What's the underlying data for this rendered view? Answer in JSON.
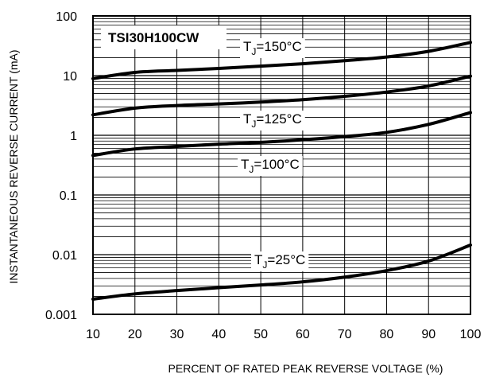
{
  "chart_data": {
    "type": "line",
    "title": "",
    "xlabel": "PERCENT OF RATED PEAK REVERSE VOLTAGE (%)",
    "ylabel": "INSTANTANEOUS REVERSE CURRENT (mA)",
    "xlim": [
      10,
      100
    ],
    "ylim": [
      0.001,
      100
    ],
    "yscale": "log",
    "grid": true,
    "x_ticks": [
      "10",
      "20",
      "30",
      "40",
      "50",
      "60",
      "70",
      "80",
      "90",
      "100"
    ],
    "y_ticks": [
      "0.001",
      "0.01",
      "0.1",
      "1",
      "10",
      "100"
    ],
    "x": [
      10,
      20,
      30,
      40,
      50,
      60,
      70,
      80,
      90,
      100
    ],
    "part_label": "TSI30H100CW",
    "series": [
      {
        "name_main": "T",
        "name_sub": "J",
        "name_rest": "=150°C",
        "values": [
          8.9,
          11.3,
          12.2,
          13.2,
          14.4,
          15.8,
          17.8,
          20.5,
          25.5,
          36.0
        ]
      },
      {
        "name_main": "T",
        "name_sub": "J",
        "name_rest": "=125°C",
        "values": [
          2.2,
          2.85,
          3.15,
          3.35,
          3.6,
          3.95,
          4.5,
          5.3,
          6.7,
          9.8
        ]
      },
      {
        "name_main": "T",
        "name_sub": "J",
        "name_rest": "=100°C",
        "values": [
          0.46,
          0.59,
          0.65,
          0.71,
          0.76,
          0.84,
          0.95,
          1.12,
          1.52,
          2.4
        ]
      },
      {
        "name_main": "T",
        "name_sub": "J",
        "name_rest": "=25°C",
        "values": [
          0.0018,
          0.0022,
          0.0025,
          0.0028,
          0.0031,
          0.0035,
          0.0042,
          0.0054,
          0.0078,
          0.0145
        ]
      }
    ]
  }
}
